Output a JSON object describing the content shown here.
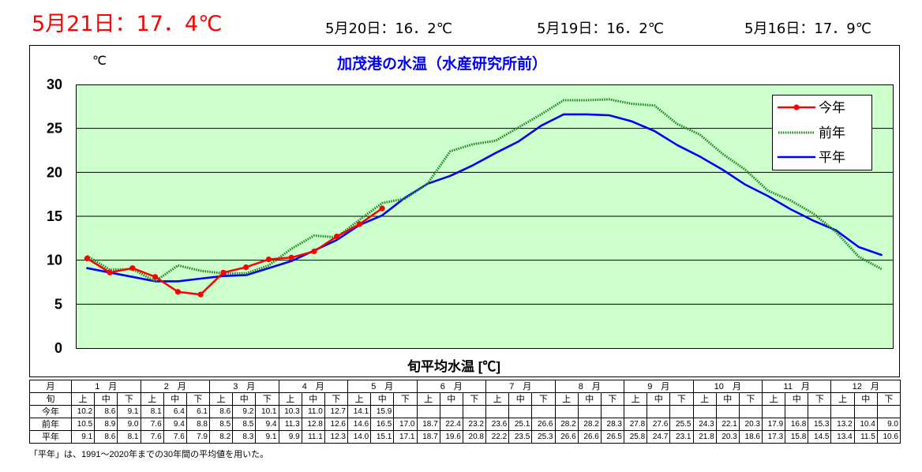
{
  "header": {
    "today": "5月21日：17．4℃",
    "recent": [
      "5月20日：16．2℃",
      "5月19日：16．2℃",
      "5月16日：17．9℃"
    ]
  },
  "colors": {
    "latest": "#ff0000",
    "title": "#0000ff",
    "plot_background": "#ccffcc"
  },
  "chart_data": {
    "type": "line",
    "title": "加茂港の水温（水産研究所前）",
    "ylabel": "℃",
    "xlabel": "旬平均水温 [℃]",
    "ylim": [
      0,
      30
    ],
    "yticks": [
      0,
      5,
      10,
      15,
      20,
      25,
      30
    ],
    "grid": true,
    "legend": "top-right",
    "months": [
      "1　月",
      "2　月",
      "3　月",
      "4　月",
      "5　月",
      "6　月",
      "7　月",
      "8　月",
      "9　月",
      "10　月",
      "11　月",
      "12　月"
    ],
    "periods": [
      "上",
      "中",
      "下"
    ],
    "series": [
      {
        "name": "今年",
        "color": "#ff0000",
        "values": [
          10.2,
          8.6,
          9.1,
          8.1,
          6.4,
          6.1,
          8.6,
          9.2,
          10.1,
          10.3,
          11.0,
          12.7,
          14.1,
          15.9,
          null,
          null,
          null,
          null,
          null,
          null,
          null,
          null,
          null,
          null,
          null,
          null,
          null,
          null,
          null,
          null,
          null,
          null,
          null,
          null,
          null,
          null
        ]
      },
      {
        "name": "前年",
        "color": "#228b22",
        "values": [
          10.5,
          8.9,
          9.0,
          7.6,
          9.4,
          8.8,
          8.5,
          8.5,
          9.4,
          11.3,
          12.8,
          12.6,
          14.6,
          16.5,
          17.0,
          18.7,
          22.4,
          23.2,
          23.6,
          25.1,
          26.6,
          28.2,
          28.2,
          28.3,
          27.8,
          27.6,
          25.5,
          24.3,
          22.1,
          20.3,
          17.9,
          16.8,
          15.3,
          13.2,
          10.4,
          9.0
        ]
      },
      {
        "name": "平年",
        "color": "#0000ff",
        "values": [
          9.1,
          8.6,
          8.1,
          7.6,
          7.6,
          7.9,
          8.2,
          8.3,
          9.1,
          9.9,
          11.1,
          12.3,
          14.0,
          15.1,
          17.1,
          18.7,
          19.6,
          20.8,
          22.2,
          23.5,
          25.3,
          26.6,
          26.6,
          26.5,
          25.8,
          24.7,
          23.1,
          21.8,
          20.3,
          18.6,
          17.3,
          15.8,
          14.5,
          13.4,
          11.5,
          10.6
        ]
      }
    ]
  },
  "table": {
    "month_header": "月",
    "period_header": "旬"
  },
  "footnote": "「平年」は、1991～2020年までの30年間の平均値を用いた。"
}
